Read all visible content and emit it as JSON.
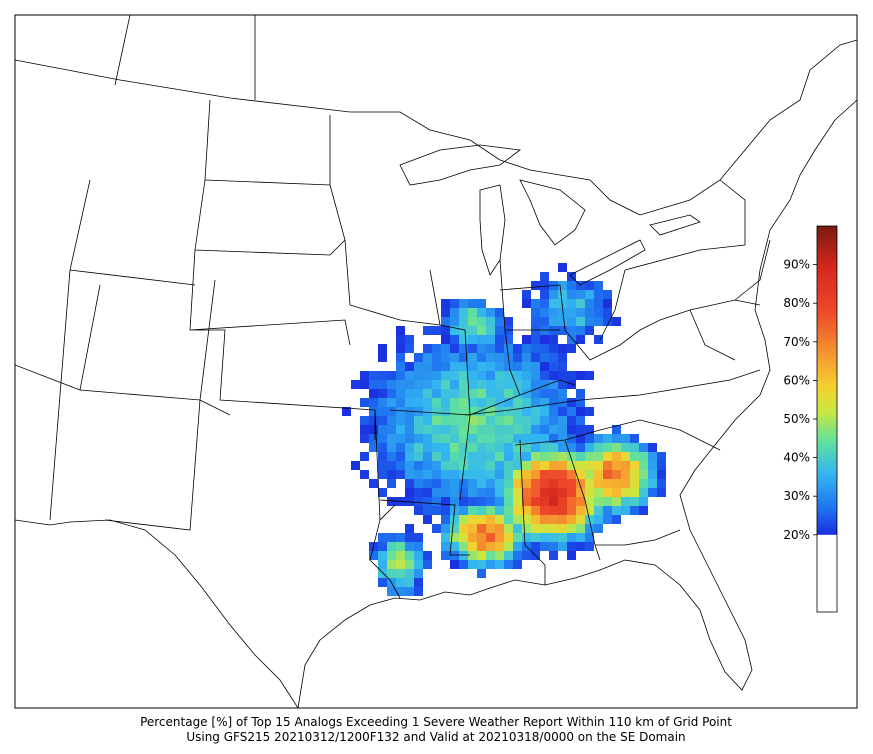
{
  "caption": [
    "Percentage [%] of Top 15 Analogs Exceeding 1 Severe Weather Report Within 110 km of Grid Point",
    "Using GFS215 20210312/1200F132 and Valid at 20210318/0000 on the SE Domain"
  ],
  "colorbar": {
    "lim": [
      0,
      100
    ],
    "ticks": [
      {
        "value": 20,
        "label": "20%"
      },
      {
        "value": 30,
        "label": "30%"
      },
      {
        "value": 40,
        "label": "40%"
      },
      {
        "value": 50,
        "label": "50%"
      },
      {
        "value": 60,
        "label": "60%"
      },
      {
        "value": 70,
        "label": "70%"
      },
      {
        "value": 80,
        "label": "80%"
      },
      {
        "value": 90,
        "label": "90%"
      }
    ]
  }
}
